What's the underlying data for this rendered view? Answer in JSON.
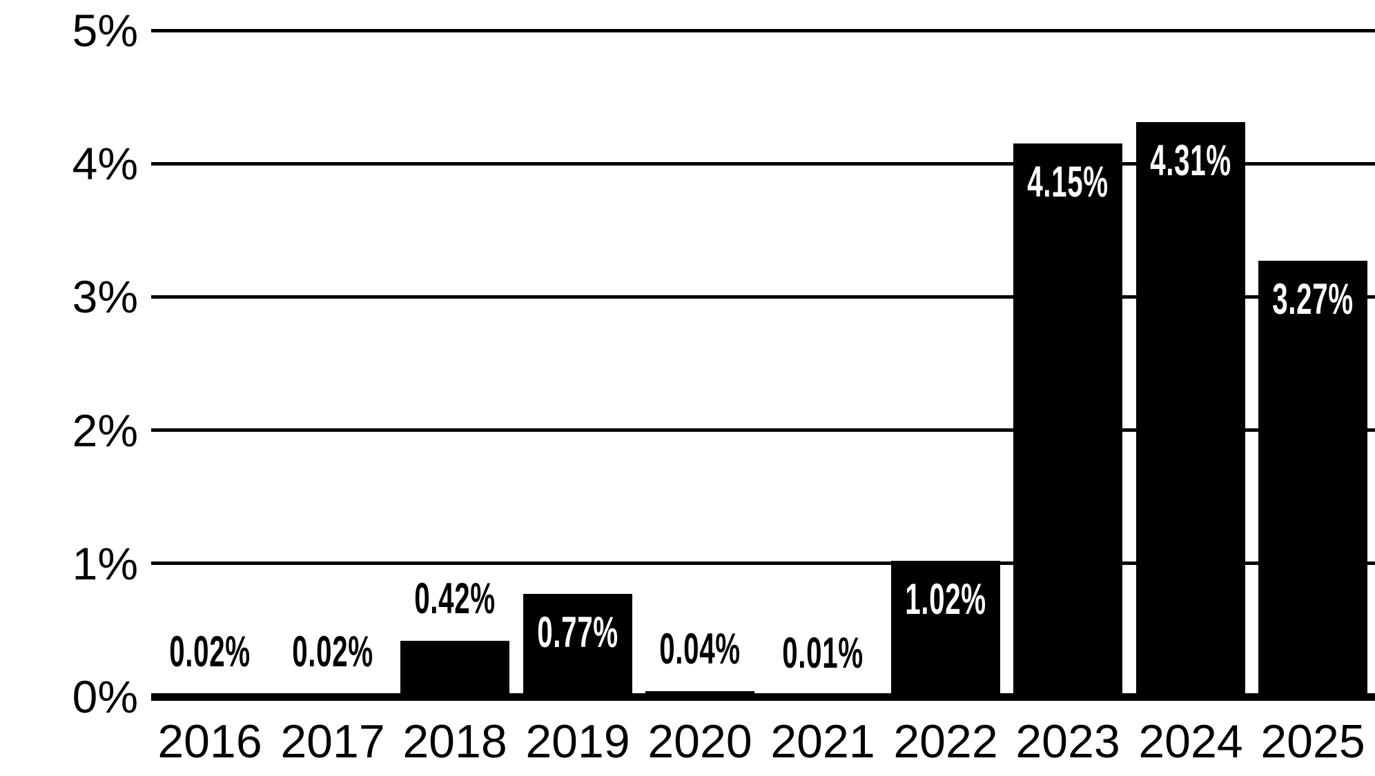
{
  "chart_data": {
    "type": "bar",
    "title": "",
    "xlabel": "",
    "ylabel": "",
    "categories": [
      "2016",
      "2017",
      "2018",
      "2019",
      "2020",
      "2021",
      "2022",
      "2023",
      "2024",
      "2025"
    ],
    "values": [
      0.02,
      0.02,
      0.42,
      0.77,
      0.04,
      0.01,
      1.02,
      4.15,
      4.31,
      3.27
    ],
    "bar_labels": [
      "0.02%",
      "0.02%",
      "0.42%",
      "0.77%",
      "0.04%",
      "0.01%",
      "1.02%",
      "4.15%",
      "4.31%",
      "3.27%"
    ],
    "y_tick_labels": [
      "0%",
      "1%",
      "2%",
      "3%",
      "4%",
      "5%"
    ],
    "ylim": [
      0,
      5
    ],
    "grid": "horizontal",
    "legend": "none",
    "bar_color": "#000000",
    "background_color": "#ffffff",
    "label_color_inside": "#ffffff",
    "label_color_outside": "#000000"
  }
}
